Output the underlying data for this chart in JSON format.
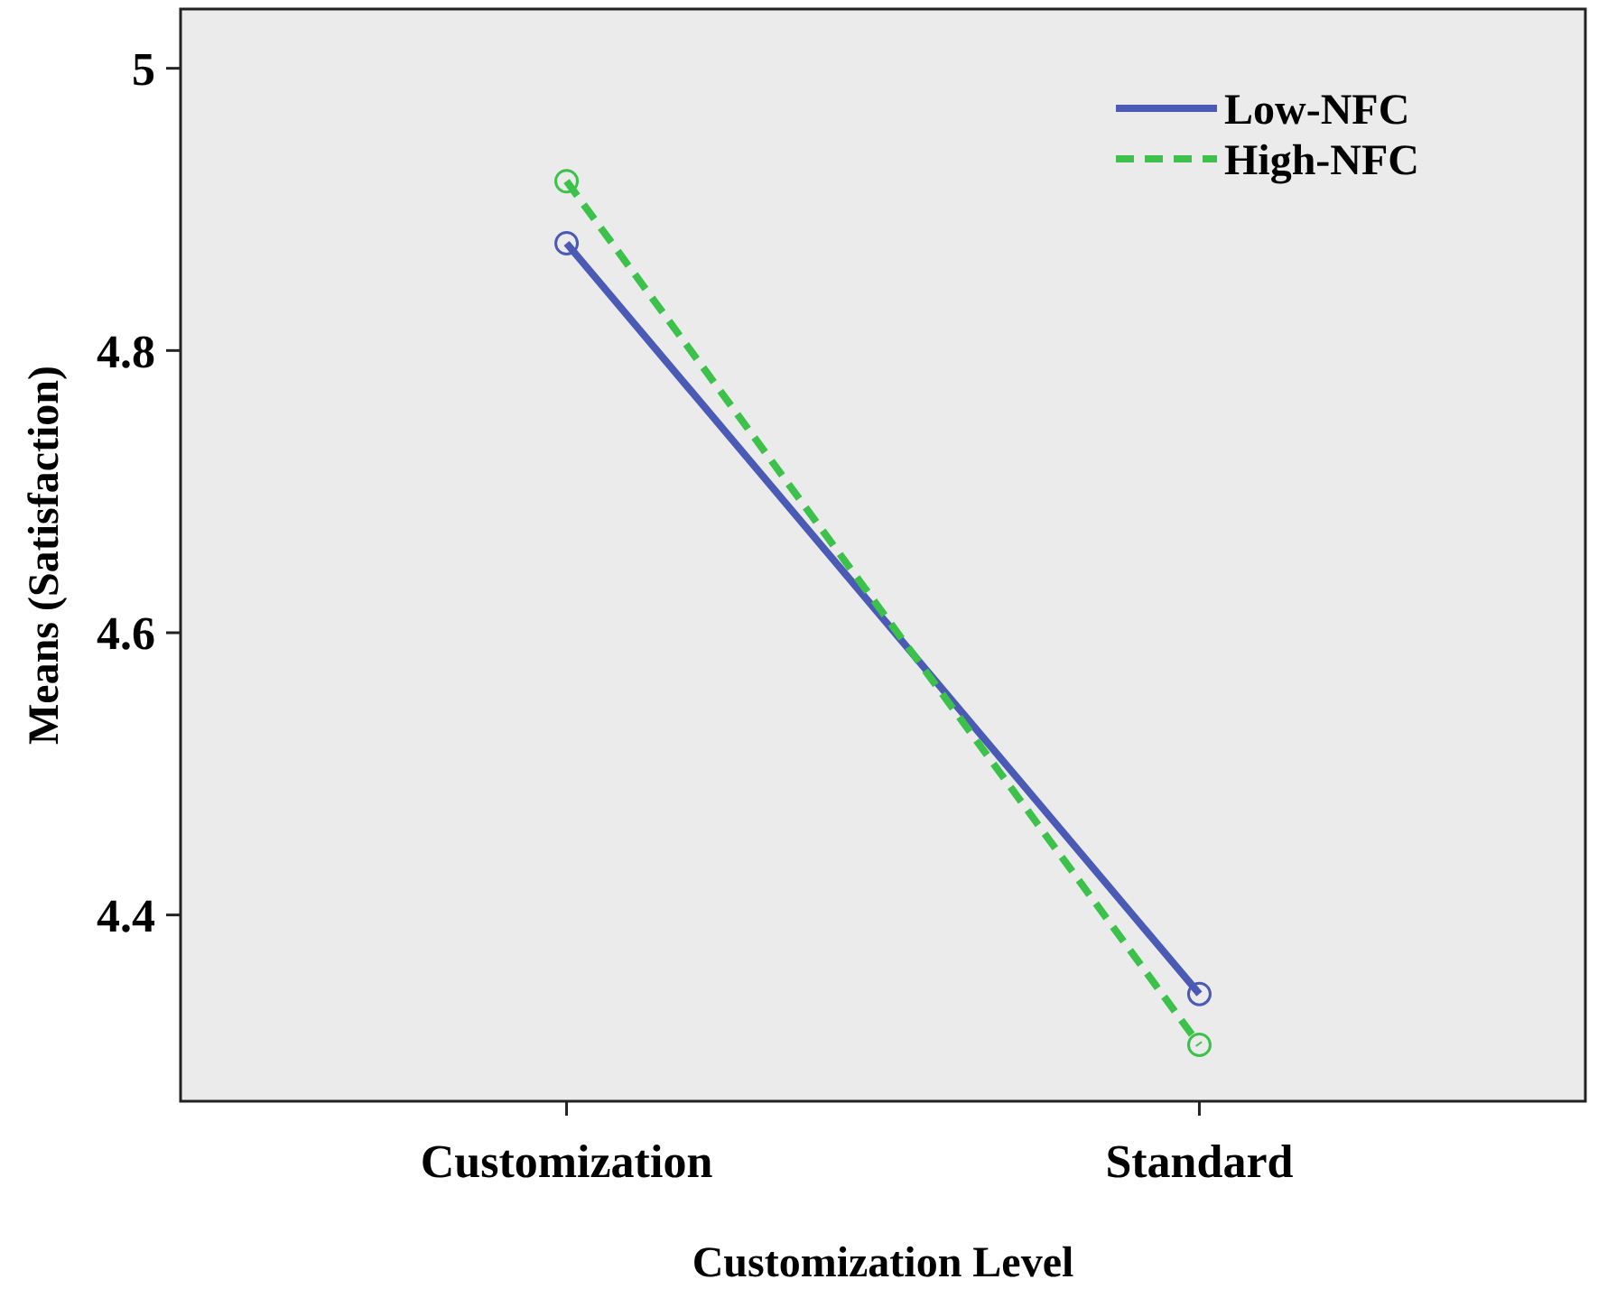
{
  "chart_data": {
    "type": "line",
    "xlabel": "Customization Level",
    "ylabel": "Means (Satisfaction)",
    "categories": [
      "Customization",
      "Standard"
    ],
    "series": [
      {
        "name": "Low-NFC",
        "color": "#4a5ab5",
        "values": [
          4.876,
          4.344
        ],
        "line_style": "solid"
      },
      {
        "name": "High-NFC",
        "color": "#3cc14a",
        "values": [
          4.92,
          4.308
        ],
        "line_style": "dashed"
      }
    ],
    "ylim": [
      4.268,
      5.042
    ],
    "yticks": [
      {
        "value": 4.4,
        "label": "4.4"
      },
      {
        "value": 4.6,
        "label": "4.6"
      },
      {
        "value": 4.8,
        "label": "4.8"
      },
      5
    ],
    "marker": "circle",
    "legend": "top right",
    "grid": false
  }
}
